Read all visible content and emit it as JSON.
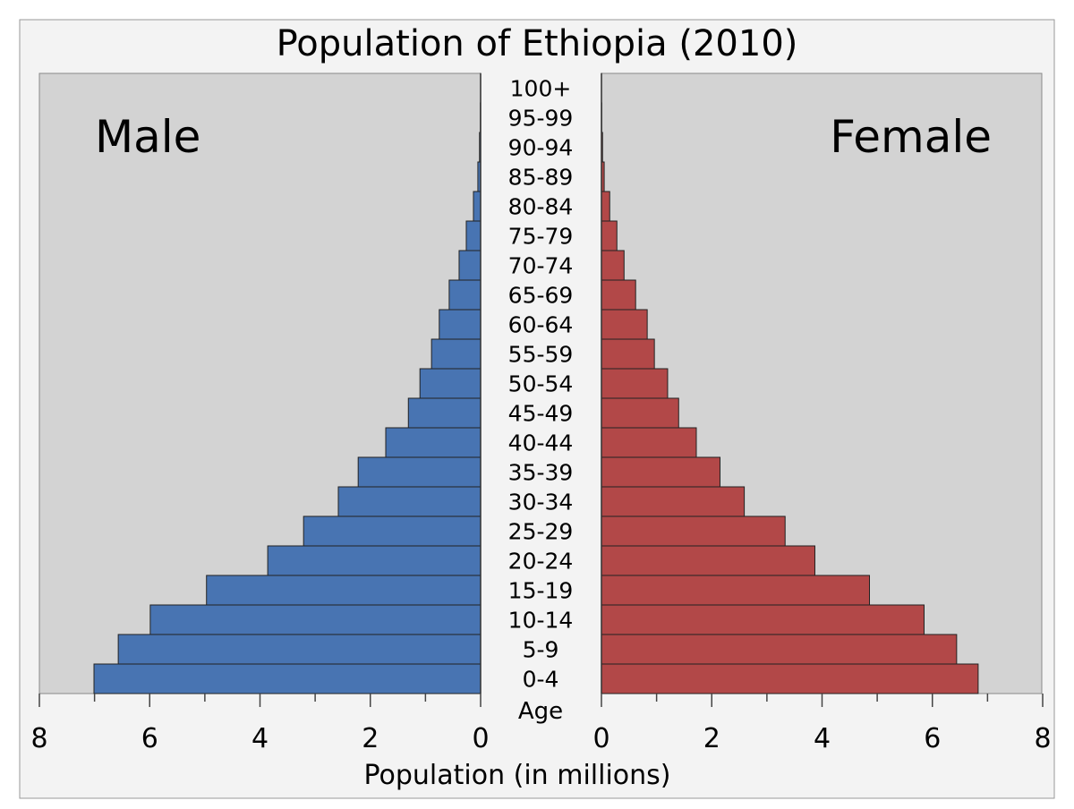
{
  "chart_data": {
    "type": "bar",
    "subtype": "population-pyramid",
    "title": "Population of Ethiopia (2010)",
    "xlabel": "Population (in millions)",
    "ylabel": "Age",
    "xlim": [
      0,
      8
    ],
    "x_ticks": [
      "0",
      "2",
      "4",
      "6",
      "8"
    ],
    "categories": [
      "0-4",
      "5-9",
      "10-14",
      "15-19",
      "20-24",
      "25-29",
      "30-34",
      "35-39",
      "40-44",
      "45-49",
      "50-54",
      "55-59",
      "60-64",
      "65-69",
      "70-74",
      "75-79",
      "80-84",
      "85-89",
      "90-94",
      "95-99",
      "100+"
    ],
    "series": [
      {
        "name": "Male",
        "color": "#4874b2",
        "values": [
          7.01,
          6.57,
          5.99,
          4.97,
          3.86,
          3.21,
          2.58,
          2.22,
          1.72,
          1.31,
          1.1,
          0.89,
          0.75,
          0.57,
          0.39,
          0.26,
          0.13,
          0.05,
          0.02,
          0.005,
          0.001
        ]
      },
      {
        "name": "Female",
        "color": "#b24848",
        "values": [
          6.83,
          6.44,
          5.85,
          4.86,
          3.87,
          3.33,
          2.59,
          2.15,
          1.72,
          1.4,
          1.2,
          0.96,
          0.83,
          0.62,
          0.41,
          0.28,
          0.15,
          0.05,
          0.02,
          0.005,
          0.001
        ]
      }
    ],
    "grid": false
  }
}
